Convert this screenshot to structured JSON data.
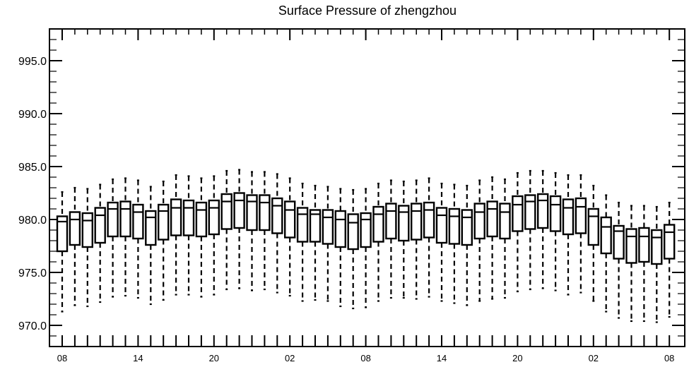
{
  "chart_data": {
    "type": "box",
    "title": "Surface Pressure of zhengzhou",
    "xlabel": "",
    "ylabel": "",
    "ylim": [
      968.0,
      998.0
    ],
    "yticks": [
      "970.0",
      "975.0",
      "980.0",
      "985.0",
      "990.0",
      "995.0"
    ],
    "xtick_labels": [
      "08",
      "14",
      "20",
      "02",
      "08",
      "14",
      "20",
      "02",
      "08"
    ],
    "xtick_steps": [
      0,
      6,
      12,
      18,
      24,
      30,
      36,
      42,
      48
    ],
    "step_hours": 3,
    "grid": false,
    "legend": "none",
    "series": [
      {
        "min": [
          971.3,
          971.9,
          971.8,
          972.2,
          972.7,
          972.8,
          972.6,
          972.0,
          972.4,
          972.9,
          972.9,
          972.7,
          972.9,
          973.4,
          973.5,
          973.3,
          973.4,
          973.1,
          972.8,
          972.3,
          972.4,
          972.3,
          971.8,
          971.6,
          971.7,
          972.3,
          972.6,
          972.6,
          972.5,
          972.7,
          972.3,
          972.1,
          971.9,
          972.3,
          972.5,
          972.6,
          973.2,
          973.4,
          973.5,
          973.3,
          972.9,
          973.1,
          972.3,
          971.3,
          970.7,
          970.4,
          970.4,
          970.3,
          970.8
        ],
        "q1": [
          977.0,
          977.6,
          977.4,
          977.8,
          978.4,
          978.4,
          978.2,
          977.6,
          978.1,
          978.5,
          978.5,
          978.4,
          978.6,
          979.1,
          979.2,
          979.0,
          979.0,
          978.7,
          978.3,
          977.9,
          977.9,
          977.7,
          977.4,
          977.2,
          977.4,
          977.9,
          978.2,
          978.0,
          978.1,
          978.3,
          977.8,
          977.7,
          977.6,
          978.2,
          978.4,
          978.2,
          978.9,
          979.1,
          979.2,
          978.9,
          978.6,
          978.7,
          977.6,
          976.8,
          976.3,
          975.9,
          976.0,
          975.8,
          976.3
        ],
        "median": [
          979.8,
          980.0,
          979.9,
          980.4,
          981.0,
          981.0,
          980.7,
          980.2,
          980.8,
          981.1,
          981.1,
          980.9,
          981.1,
          981.7,
          981.8,
          981.7,
          981.6,
          981.3,
          980.9,
          980.5,
          980.5,
          980.2,
          980.0,
          979.7,
          980.0,
          980.5,
          980.8,
          980.7,
          980.8,
          980.9,
          980.4,
          980.3,
          980.2,
          980.7,
          981.0,
          980.7,
          981.4,
          981.7,
          981.8,
          981.4,
          981.1,
          981.2,
          980.3,
          979.3,
          978.9,
          978.4,
          978.4,
          978.3,
          978.8
        ],
        "q3": [
          980.3,
          980.7,
          980.6,
          981.1,
          981.6,
          981.7,
          981.4,
          980.8,
          981.4,
          981.9,
          981.8,
          981.6,
          981.8,
          982.4,
          982.5,
          982.3,
          982.3,
          982.0,
          981.7,
          981.1,
          980.9,
          980.9,
          980.8,
          980.5,
          980.6,
          981.2,
          981.5,
          981.3,
          981.5,
          981.6,
          981.1,
          981.0,
          980.9,
          981.5,
          981.7,
          981.5,
          982.2,
          982.3,
          982.4,
          982.2,
          981.9,
          982.0,
          981.0,
          980.2,
          979.4,
          979.1,
          979.2,
          979.0,
          979.5
        ],
        "max": [
          982.6,
          983.0,
          982.9,
          983.3,
          983.8,
          983.9,
          983.7,
          983.1,
          983.6,
          984.2,
          984.1,
          983.9,
          984.1,
          984.6,
          984.7,
          984.5,
          984.5,
          984.3,
          983.9,
          983.4,
          983.2,
          983.1,
          982.9,
          982.8,
          982.9,
          983.4,
          983.7,
          983.6,
          983.7,
          983.9,
          983.4,
          983.3,
          983.2,
          983.7,
          984.0,
          983.8,
          984.4,
          984.6,
          984.6,
          984.4,
          984.2,
          984.2,
          983.2,
          982.3,
          981.6,
          981.3,
          981.3,
          981.2,
          981.6
        ]
      }
    ]
  }
}
